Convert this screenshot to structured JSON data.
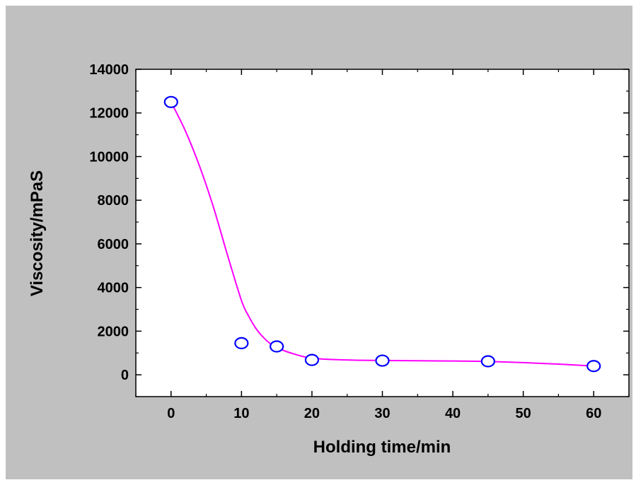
{
  "chart_data": {
    "type": "scatter",
    "title": "",
    "xlabel": "Holding time/min",
    "ylabel": "Viscosity/mPaS",
    "xlim": [
      -5,
      65
    ],
    "ylim": [
      -1000,
      14000
    ],
    "x_ticks": [
      0,
      10,
      20,
      30,
      40,
      50,
      60
    ],
    "y_ticks": [
      0,
      2000,
      4000,
      6000,
      8000,
      10000,
      12000,
      14000
    ],
    "grid": false,
    "legend": "none",
    "series": [
      {
        "x": [
          0,
          10,
          15,
          20,
          30,
          45,
          60
        ],
        "y": [
          12500,
          1450,
          1300,
          680,
          650,
          620,
          400
        ],
        "marker": "open-circle",
        "marker_color": "#0000ff",
        "fit_line_color": "#ff00ff",
        "fit_curve": [
          [
            0,
            12500
          ],
          [
            2,
            11200
          ],
          [
            4,
            9600
          ],
          [
            6,
            7700
          ],
          [
            8,
            5500
          ],
          [
            10,
            3400
          ],
          [
            11,
            2700
          ],
          [
            12,
            2150
          ],
          [
            13,
            1750
          ],
          [
            14,
            1450
          ],
          [
            15,
            1250
          ],
          [
            17,
            1000
          ],
          [
            20,
            760
          ],
          [
            25,
            680
          ],
          [
            30,
            655
          ],
          [
            40,
            630
          ],
          [
            45,
            610
          ],
          [
            50,
            560
          ],
          [
            55,
            490
          ],
          [
            60,
            400
          ]
        ]
      }
    ]
  }
}
